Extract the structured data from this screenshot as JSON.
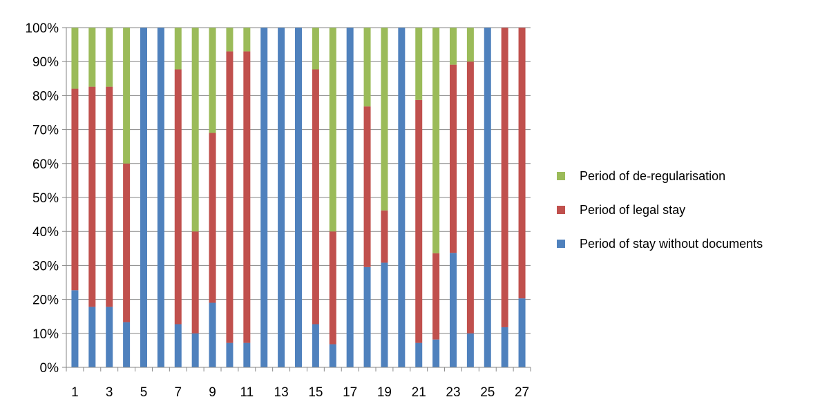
{
  "chart_data": {
    "type": "bar",
    "stacking": "percent",
    "categories": [
      "1",
      "2",
      "3",
      "4",
      "5",
      "6",
      "7",
      "8",
      "9",
      "10",
      "11",
      "12",
      "13",
      "14",
      "15",
      "16",
      "17",
      "18",
      "19",
      "20",
      "21",
      "22",
      "23",
      "24",
      "25",
      "26",
      "27"
    ],
    "x_tick_labels": [
      "1",
      "3",
      "5",
      "7",
      "9",
      "11",
      "13",
      "15",
      "17",
      "19",
      "21",
      "23",
      "25",
      "27"
    ],
    "y_tick_labels": [
      "0%",
      "10%",
      "20%",
      "30%",
      "40%",
      "50%",
      "60%",
      "70%",
      "80%",
      "90%",
      "100%"
    ],
    "ylim": [
      0,
      100
    ],
    "y_unit": "%",
    "grid": "horizontal",
    "legend_position": "right",
    "legend_order": [
      2,
      1,
      0
    ],
    "series": [
      {
        "name": "Period of stay without documents",
        "color": "#4F81BD",
        "values": [
          22.7,
          17.8,
          17.8,
          13.3,
          100,
          100,
          12.7,
          10,
          19,
          7.2,
          7.2,
          100,
          100,
          100,
          12.7,
          6.8,
          100,
          29.5,
          30.8,
          100,
          7.2,
          8.2,
          33.7,
          10,
          100,
          11.8,
          20.3
        ]
      },
      {
        "name": "Period of legal stay",
        "color": "#C0504D",
        "values": [
          59.3,
          64.8,
          64.8,
          46.7,
          0,
          0,
          75,
          30,
          50,
          85.8,
          85.8,
          0,
          0,
          0,
          75,
          33.2,
          0,
          47.3,
          15.4,
          0,
          71.5,
          25.4,
          55.4,
          80,
          0,
          88.2,
          79.7
        ]
      },
      {
        "name": "Period of de-regularisation",
        "color": "#9BBB59",
        "values": [
          18,
          17.4,
          17.4,
          40,
          0,
          0,
          12.3,
          60,
          31,
          7,
          7,
          0,
          0,
          0,
          12.3,
          60,
          0,
          23.2,
          53.8,
          0,
          21.3,
          66.4,
          10.9,
          10,
          0,
          0,
          0
        ]
      }
    ]
  }
}
